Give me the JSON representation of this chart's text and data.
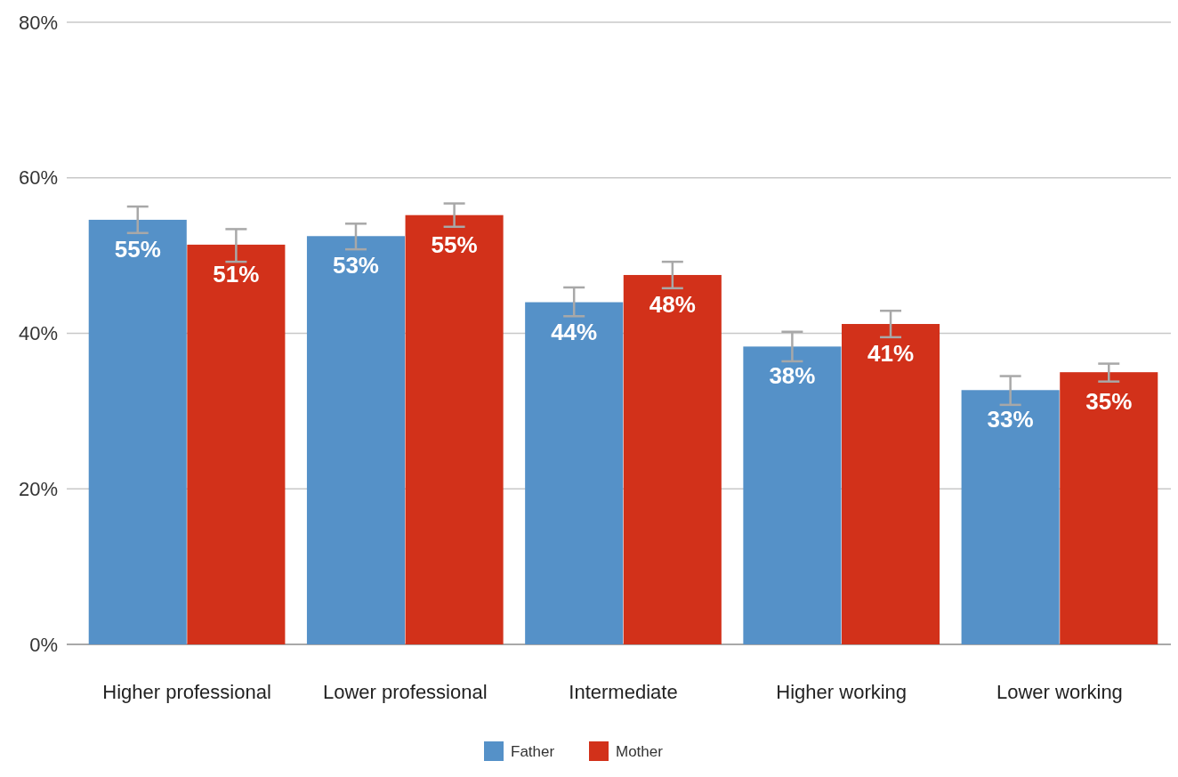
{
  "chart_data": {
    "type": "bar",
    "categories": [
      "Higher professional",
      "Lower professional",
      "Intermediate",
      "Higher working",
      "Lower working"
    ],
    "series": [
      {
        "name": "Father",
        "color": "#5591c8",
        "values": [
          54.6,
          52.5,
          44.0,
          38.3,
          32.7
        ],
        "errors": [
          [
            52.9,
            56.3
          ],
          [
            50.8,
            54.1
          ],
          [
            42.2,
            45.9
          ],
          [
            36.4,
            40.2
          ],
          [
            30.8,
            34.5
          ]
        ],
        "value_labels": [
          "55%",
          "53%",
          "44%",
          "38%",
          "33%"
        ]
      },
      {
        "name": "Mother",
        "color": "#d2311a",
        "values": [
          51.4,
          55.2,
          47.5,
          41.2,
          35.0
        ],
        "errors": [
          [
            49.2,
            53.4
          ],
          [
            53.7,
            56.7
          ],
          [
            45.8,
            49.2
          ],
          [
            39.5,
            42.9
          ],
          [
            33.8,
            36.1
          ]
        ],
        "value_labels": [
          "51%",
          "55%",
          "48%",
          "41%",
          "35%"
        ]
      }
    ],
    "ylim": [
      0,
      80
    ],
    "yticks": [
      {
        "value": 0,
        "label": "0%"
      },
      {
        "value": 20,
        "label": "20%"
      },
      {
        "value": 40,
        "label": "40%"
      },
      {
        "value": 60,
        "label": "60%"
      },
      {
        "value": 80,
        "label": "80%"
      }
    ],
    "grid": "y",
    "legend": "bottom"
  }
}
